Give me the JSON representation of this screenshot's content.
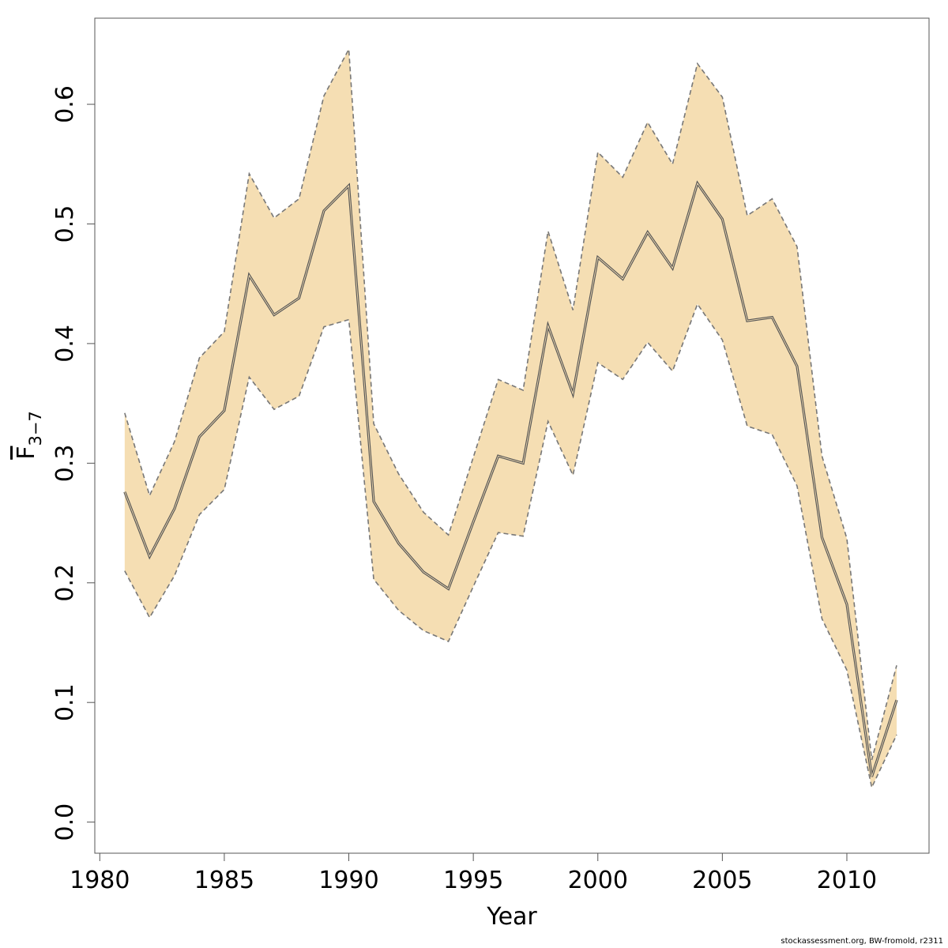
{
  "chart_data": {
    "type": "line",
    "title": "",
    "xlabel": "Year",
    "ylabel": {
      "main": "F",
      "subscript": "3−7"
    },
    "xlim": [
      1979.8,
      2013.3
    ],
    "ylim": [
      -0.026,
      0.672
    ],
    "xticks": [
      1980,
      1985,
      1990,
      1995,
      2000,
      2005,
      2010
    ],
    "yticks": [
      0.0,
      0.1,
      0.2,
      0.3,
      0.4,
      0.5,
      0.6
    ],
    "ytick_labels": [
      "0.0",
      "0.1",
      "0.2",
      "0.3",
      "0.4",
      "0.5",
      "0.6"
    ],
    "band_color": "#F5DEB3",
    "line_color": "#555555",
    "grid": false,
    "legend": "none",
    "x": [
      1981,
      1982,
      1983,
      1984,
      1985,
      1986,
      1987,
      1988,
      1989,
      1990,
      1991,
      1992,
      1993,
      1994,
      1995,
      1996,
      1997,
      1998,
      1999,
      2000,
      2001,
      2002,
      2003,
      2004,
      2005,
      2006,
      2007,
      2008,
      2009,
      2010,
      2011,
      2012
    ],
    "series": [
      {
        "values": [
          0.276,
          0.222,
          0.262,
          0.322,
          0.344,
          0.457,
          0.424,
          0.438,
          0.511,
          0.532,
          0.268,
          0.233,
          0.209,
          0.195,
          0.251,
          0.306,
          0.3,
          0.415,
          0.358,
          0.472,
          0.454,
          0.493,
          0.463,
          0.534,
          0.504,
          0.419,
          0.422,
          0.381,
          0.238,
          0.182,
          0.038,
          0.102
        ]
      },
      {
        "values": [
          0.342,
          0.273,
          0.318,
          0.388,
          0.41,
          0.542,
          0.505,
          0.521,
          0.607,
          0.646,
          0.333,
          0.291,
          0.259,
          0.24,
          0.305,
          0.37,
          0.361,
          0.494,
          0.428,
          0.56,
          0.539,
          0.585,
          0.55,
          0.634,
          0.606,
          0.507,
          0.521,
          0.481,
          0.306,
          0.237,
          0.052,
          0.131
        ]
      },
      {
        "values": [
          0.21,
          0.171,
          0.206,
          0.257,
          0.278,
          0.372,
          0.345,
          0.356,
          0.414,
          0.42,
          0.203,
          0.177,
          0.16,
          0.151,
          0.197,
          0.242,
          0.239,
          0.335,
          0.29,
          0.384,
          0.37,
          0.401,
          0.377,
          0.433,
          0.403,
          0.331,
          0.324,
          0.281,
          0.17,
          0.127,
          0.029,
          0.073
        ]
      }
    ]
  },
  "footer_text": "stockassessment.org, BW-fromold, r2311"
}
